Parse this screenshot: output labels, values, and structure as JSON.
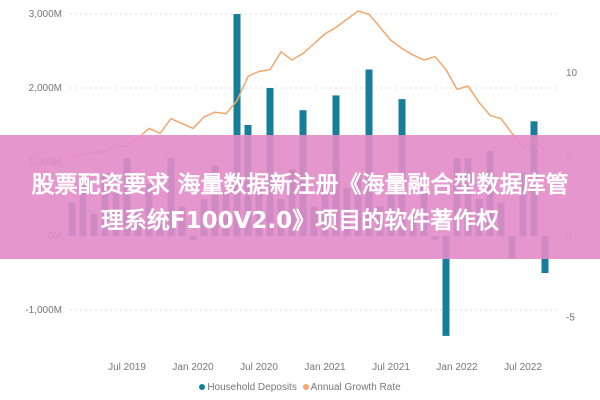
{
  "chart_data": {
    "type": "bar+line",
    "x_start": "Feb 2019",
    "x_end": "Sep 2022",
    "x_ticks": [
      "Jul 2019",
      "Jan 2020",
      "Jul 2020",
      "Jan 2021",
      "Jul 2021",
      "Jan 2022",
      "Jul 2022"
    ],
    "y_left_ticks": [
      "3,000M",
      "2,000M",
      "1,000M",
      "0M",
      "-1,000M"
    ],
    "y_left_range_millions": [
      -1350,
      3100
    ],
    "y_right_ticks": [
      "10",
      "5",
      "0",
      "-5"
    ],
    "y_right_range": [
      -5,
      14
    ],
    "grid": "horizontal dotted",
    "legend_position": "bottom",
    "series": [
      {
        "name": "Household Deposits",
        "type": "bar",
        "color": "#177e98",
        "values": [
          450,
          750,
          300,
          850,
          600,
          1050,
          350,
          700,
          250,
          1050,
          400,
          -60,
          500,
          950,
          600,
          3000,
          1500,
          700,
          2000,
          500,
          900,
          1700,
          400,
          800,
          1900,
          650,
          850,
          2250,
          400,
          700,
          1850,
          300,
          700,
          -50,
          -1350,
          1050,
          1050,
          500,
          1150,
          450,
          -300,
          850,
          1550,
          -500
        ]
      },
      {
        "name": "Annual Growth Rate",
        "type": "line",
        "color": "#f5a66e",
        "values": [
          4.9,
          5.0,
          5.1,
          5.2,
          5.6,
          5.5,
          6.0,
          6.6,
          6.3,
          7.2,
          6.9,
          6.6,
          7.3,
          7.6,
          7.5,
          8.3,
          9.8,
          10.1,
          10.2,
          11.3,
          10.8,
          11.2,
          11.8,
          12.4,
          12.8,
          13.3,
          13.8,
          13.6,
          12.8,
          12.0,
          11.5,
          11.1,
          10.8,
          11.0,
          10.2,
          9.0,
          9.2,
          8.2,
          7.4,
          7.2,
          6.3,
          5.4,
          5.8,
          5.3
        ]
      }
    ]
  },
  "legend": {
    "deposits": "Household Deposits",
    "growth": "Annual Growth Rate"
  },
  "banner": {
    "line1": "股票配资要求 海量数据新注册《海量融合型数据库管",
    "line2": "理系统F100V2.0》项目的软件著作权"
  }
}
